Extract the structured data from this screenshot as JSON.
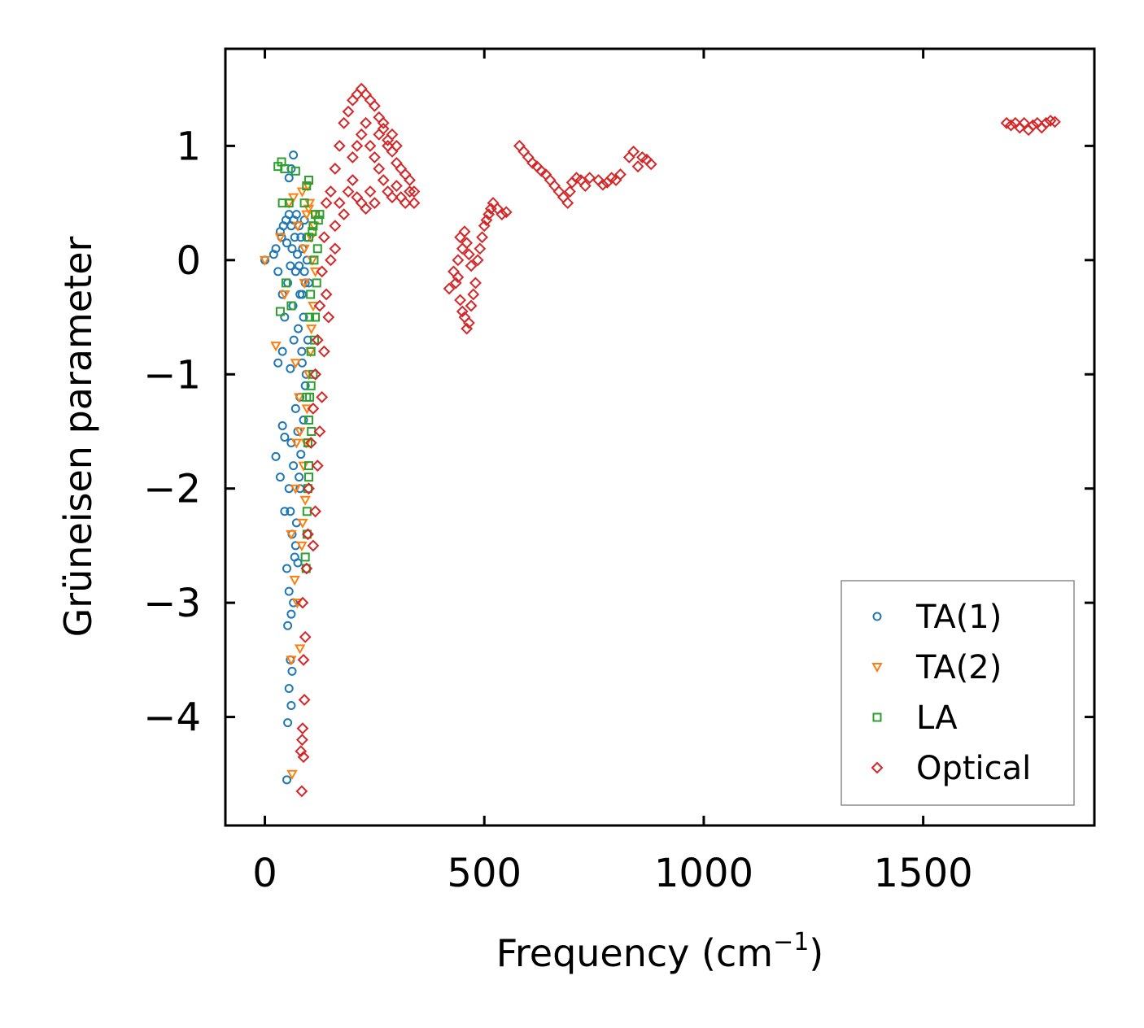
{
  "chart_data": {
    "type": "scatter",
    "title": "",
    "xlabel": "Frequency (cm",
    "xlabel_superscript": "−1",
    "xlabel_suffix": ")",
    "ylabel": "Grüneisen parameter",
    "xlim": [
      -90,
      1890
    ],
    "ylim": [
      -4.95,
      1.85
    ],
    "xticks": [
      0,
      500,
      1000,
      1500
    ],
    "xtick_labels": [
      "0",
      "500",
      "1000",
      "1500"
    ],
    "yticks": [
      1,
      0,
      -1,
      -2,
      -3,
      -4
    ],
    "ytick_labels": [
      "1",
      "0",
      "−1",
      "−2",
      "−3",
      "−4"
    ],
    "legend_position": "lower-right",
    "series": [
      {
        "name": "TA(1)",
        "marker": "circle",
        "color": "#1f77b4",
        "points": [
          [
            0,
            0
          ],
          [
            20,
            0.05
          ],
          [
            25,
            0.1
          ],
          [
            30,
            -0.1
          ],
          [
            35,
            0.25
          ],
          [
            38,
            0.2
          ],
          [
            40,
            -0.3
          ],
          [
            42,
            0.3
          ],
          [
            45,
            -0.5
          ],
          [
            48,
            0.35
          ],
          [
            50,
            0.15
          ],
          [
            52,
            -0.2
          ],
          [
            55,
            0.4
          ],
          [
            58,
            -0.05
          ],
          [
            60,
            0.3
          ],
          [
            62,
            0.1
          ],
          [
            64,
            -0.4
          ],
          [
            66,
            0.35
          ],
          [
            68,
            0.2
          ],
          [
            70,
            -0.1
          ],
          [
            72,
            0.4
          ],
          [
            74,
            0.05
          ],
          [
            76,
            -0.6
          ],
          [
            78,
            0.3
          ],
          [
            80,
            -0.3
          ],
          [
            82,
            0.2
          ],
          [
            84,
            -0.8
          ],
          [
            86,
            0.1
          ],
          [
            88,
            -0.5
          ],
          [
            90,
            0.35
          ],
          [
            92,
            -0.2
          ],
          [
            94,
            -1.0
          ],
          [
            96,
            0.0
          ],
          [
            98,
            -0.7
          ],
          [
            70,
            -1.3
          ],
          [
            75,
            -1.5
          ],
          [
            80,
            -1.2
          ],
          [
            85,
            -0.9
          ],
          [
            65,
            -1.8
          ],
          [
            60,
            -1.6
          ],
          [
            55,
            -2.0
          ],
          [
            58,
            -2.2
          ],
          [
            62,
            -2.4
          ],
          [
            50,
            -2.7
          ],
          [
            55,
            -2.9
          ],
          [
            60,
            -3.1
          ],
          [
            52,
            -3.2
          ],
          [
            65,
            -3.0
          ],
          [
            58,
            -3.5
          ],
          [
            62,
            -3.6
          ],
          [
            55,
            -3.75
          ],
          [
            60,
            -3.9
          ],
          [
            52,
            -4.05
          ],
          [
            50,
            -4.55
          ],
          [
            25,
            -1.72
          ],
          [
            35,
            -1.9
          ],
          [
            40,
            -1.45
          ],
          [
            45,
            -1.55
          ],
          [
            30,
            -0.9
          ],
          [
            40,
            -0.8
          ],
          [
            55,
            0.72
          ],
          [
            65,
            0.92
          ],
          [
            60,
            0.8
          ],
          [
            70,
            -2.5
          ],
          [
            80,
            -2.0
          ],
          [
            75,
            -2.65
          ],
          [
            78,
            -1.9
          ],
          [
            82,
            -1.7
          ],
          [
            88,
            -1.4
          ],
          [
            92,
            -1.1
          ],
          [
            45,
            -2.2
          ],
          [
            68,
            -2.6
          ],
          [
            72,
            -2.3
          ],
          [
            85,
            -0.3
          ],
          [
            90,
            -0.1
          ],
          [
            95,
            0.2
          ],
          [
            100,
            -0.2
          ],
          [
            78,
            -0.05
          ],
          [
            66,
            -0.7
          ],
          [
            58,
            -0.95
          ]
        ]
      },
      {
        "name": "TA(2)",
        "marker": "triangle-down",
        "color": "#ff7f0e",
        "points": [
          [
            0,
            0
          ],
          [
            25,
            -0.75
          ],
          [
            35,
            0.2
          ],
          [
            45,
            -0.3
          ],
          [
            55,
            0.5
          ],
          [
            60,
            -2.4
          ],
          [
            65,
            0.55
          ],
          [
            70,
            -0.9
          ],
          [
            75,
            0.3
          ],
          [
            80,
            -1.5
          ],
          [
            85,
            0.6
          ],
          [
            90,
            -0.2
          ],
          [
            95,
            0.4
          ],
          [
            100,
            -1.0
          ],
          [
            105,
            0.2
          ],
          [
            110,
            -0.4
          ],
          [
            98,
            0.65
          ],
          [
            102,
            0.5
          ],
          [
            88,
            -1.8
          ],
          [
            92,
            -2.1
          ],
          [
            84,
            -2.5
          ],
          [
            80,
            -3.4
          ],
          [
            60,
            -3.5
          ],
          [
            62,
            -4.5
          ],
          [
            70,
            -2.0
          ],
          [
            96,
            -1.3
          ],
          [
            108,
            0.0
          ],
          [
            112,
            0.3
          ],
          [
            106,
            -0.6
          ],
          [
            94,
            -1.6
          ],
          [
            86,
            -2.3
          ],
          [
            90,
            0.1
          ],
          [
            100,
            0.45
          ],
          [
            104,
            -0.8
          ],
          [
            112,
            0.4
          ],
          [
            115,
            -0.1
          ],
          [
            78,
            -1.2
          ],
          [
            72,
            -1.6
          ],
          [
            68,
            -2.8
          ],
          [
            74,
            -3.0
          ]
        ]
      },
      {
        "name": "LA",
        "marker": "square",
        "color": "#2ca02c",
        "points": [
          [
            30,
            0.82
          ],
          [
            38,
            0.86
          ],
          [
            45,
            0.8
          ],
          [
            70,
            0.78
          ],
          [
            90,
            0.5
          ],
          [
            95,
            0.65
          ],
          [
            100,
            0.7
          ],
          [
            40,
            0.5
          ],
          [
            55,
            0.5
          ],
          [
            60,
            -0.4
          ],
          [
            35,
            -0.45
          ],
          [
            48,
            -0.2
          ],
          [
            100,
            0.2
          ],
          [
            102,
            -0.5
          ],
          [
            105,
            -0.8
          ],
          [
            95,
            -1.2
          ],
          [
            100,
            -1.4
          ],
          [
            98,
            -1.6
          ],
          [
            96,
            -2.2
          ],
          [
            92,
            -2.6
          ],
          [
            98,
            -2.0
          ],
          [
            100,
            -1.8
          ],
          [
            110,
            0.3
          ],
          [
            115,
            0.4
          ],
          [
            120,
            0.1
          ],
          [
            118,
            -0.2
          ],
          [
            122,
            0.35
          ],
          [
            115,
            -0.5
          ],
          [
            110,
            -1.0
          ],
          [
            106,
            -1.5
          ],
          [
            125,
            0.4
          ],
          [
            112,
            0.0
          ],
          [
            108,
            0.25
          ],
          [
            104,
            -0.3
          ],
          [
            102,
            -1.2
          ],
          [
            96,
            -2.4
          ],
          [
            94,
            -2.7
          ],
          [
            100,
            -1.9
          ],
          [
            105,
            -1.1
          ],
          [
            113,
            -0.7
          ]
        ]
      },
      {
        "name": "Optical",
        "marker": "diamond",
        "color": "#d62728",
        "points": [
          [
            84,
            -4.65
          ],
          [
            82,
            -4.3
          ],
          [
            85,
            -4.2
          ],
          [
            88,
            -4.35
          ],
          [
            86,
            -4.1
          ],
          [
            90,
            -3.85
          ],
          [
            88,
            -3.5
          ],
          [
            92,
            -3.3
          ],
          [
            86,
            -3.0
          ],
          [
            95,
            -2.7
          ],
          [
            98,
            -2.4
          ],
          [
            100,
            -2.0
          ],
          [
            105,
            -1.6
          ],
          [
            110,
            -1.3
          ],
          [
            115,
            -1.0
          ],
          [
            120,
            -0.7
          ],
          [
            125,
            -0.4
          ],
          [
            130,
            -0.1
          ],
          [
            135,
            0.2
          ],
          [
            140,
            0.5
          ],
          [
            150,
            0.6
          ],
          [
            160,
            0.8
          ],
          [
            170,
            1.0
          ],
          [
            180,
            1.2
          ],
          [
            190,
            1.3
          ],
          [
            200,
            1.4
          ],
          [
            210,
            1.45
          ],
          [
            220,
            1.5
          ],
          [
            230,
            1.45
          ],
          [
            240,
            1.4
          ],
          [
            250,
            1.35
          ],
          [
            260,
            1.25
          ],
          [
            270,
            1.15
          ],
          [
            280,
            1.05
          ],
          [
            290,
            0.95
          ],
          [
            300,
            0.85
          ],
          [
            310,
            0.8
          ],
          [
            320,
            0.75
          ],
          [
            330,
            0.7
          ],
          [
            340,
            0.6
          ],
          [
            200,
            0.9
          ],
          [
            210,
            1.0
          ],
          [
            220,
            1.1
          ],
          [
            230,
            1.2
          ],
          [
            240,
            1.0
          ],
          [
            250,
            0.9
          ],
          [
            260,
            0.8
          ],
          [
            270,
            0.7
          ],
          [
            280,
            0.6
          ],
          [
            290,
            0.55
          ],
          [
            160,
            0.3
          ],
          [
            170,
            0.5
          ],
          [
            180,
            0.4
          ],
          [
            190,
            0.6
          ],
          [
            200,
            0.7
          ],
          [
            210,
            0.55
          ],
          [
            220,
            0.5
          ],
          [
            230,
            0.45
          ],
          [
            240,
            0.6
          ],
          [
            250,
            0.5
          ],
          [
            300,
            0.65
          ],
          [
            310,
            0.55
          ],
          [
            320,
            0.5
          ],
          [
            330,
            0.6
          ],
          [
            340,
            0.5
          ],
          [
            260,
            1.1
          ],
          [
            270,
            1.2
          ],
          [
            280,
            1.0
          ],
          [
            290,
            1.1
          ],
          [
            300,
            1.0
          ],
          [
            150,
            0.0
          ],
          [
            160,
            0.1
          ],
          [
            140,
            -0.3
          ],
          [
            145,
            -0.5
          ],
          [
            135,
            -0.8
          ],
          [
            130,
            -1.2
          ],
          [
            125,
            -1.5
          ],
          [
            120,
            -1.8
          ],
          [
            115,
            -2.2
          ],
          [
            110,
            -2.5
          ],
          [
            420,
            -0.25
          ],
          [
            430,
            -0.1
          ],
          [
            440,
            0.0
          ],
          [
            445,
            -0.35
          ],
          [
            450,
            -0.45
          ],
          [
            455,
            -0.5
          ],
          [
            460,
            -0.6
          ],
          [
            465,
            -0.55
          ],
          [
            470,
            -0.4
          ],
          [
            475,
            -0.3
          ],
          [
            480,
            -0.2
          ],
          [
            485,
            0.0
          ],
          [
            490,
            0.1
          ],
          [
            495,
            0.2
          ],
          [
            500,
            0.3
          ],
          [
            505,
            0.35
          ],
          [
            510,
            0.4
          ],
          [
            515,
            0.45
          ],
          [
            520,
            0.5
          ],
          [
            530,
            0.45
          ],
          [
            540,
            0.4
          ],
          [
            550,
            0.42
          ],
          [
            455,
            0.25
          ],
          [
            460,
            0.15
          ],
          [
            465,
            0.05
          ],
          [
            470,
            -0.05
          ],
          [
            450,
            0.1
          ],
          [
            440,
            -0.15
          ],
          [
            435,
            -0.2
          ],
          [
            445,
            0.2
          ],
          [
            580,
            1.0
          ],
          [
            590,
            0.95
          ],
          [
            600,
            0.9
          ],
          [
            610,
            0.85
          ],
          [
            620,
            0.82
          ],
          [
            630,
            0.78
          ],
          [
            640,
            0.75
          ],
          [
            650,
            0.7
          ],
          [
            660,
            0.65
          ],
          [
            670,
            0.6
          ],
          [
            680,
            0.55
          ],
          [
            690,
            0.5
          ],
          [
            695,
            0.6
          ],
          [
            700,
            0.68
          ],
          [
            710,
            0.72
          ],
          [
            720,
            0.7
          ],
          [
            730,
            0.65
          ],
          [
            740,
            0.72
          ],
          [
            760,
            0.7
          ],
          [
            770,
            0.66
          ],
          [
            780,
            0.68
          ],
          [
            790,
            0.72
          ],
          [
            800,
            0.7
          ],
          [
            810,
            0.75
          ],
          [
            830,
            0.9
          ],
          [
            840,
            0.95
          ],
          [
            850,
            0.82
          ],
          [
            860,
            0.9
          ],
          [
            870,
            0.88
          ],
          [
            880,
            0.84
          ],
          [
            1690,
            1.2
          ],
          [
            1700,
            1.18
          ],
          [
            1710,
            1.2
          ],
          [
            1720,
            1.16
          ],
          [
            1730,
            1.2
          ],
          [
            1740,
            1.14
          ],
          [
            1750,
            1.18
          ],
          [
            1760,
            1.2
          ],
          [
            1770,
            1.16
          ],
          [
            1780,
            1.2
          ],
          [
            1790,
            1.22
          ],
          [
            1800,
            1.21
          ]
        ]
      }
    ]
  }
}
